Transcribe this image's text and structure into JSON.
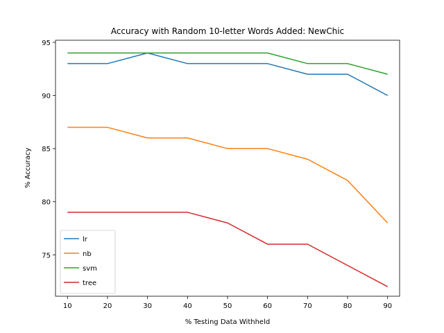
{
  "chart_data": {
    "type": "line",
    "title": "Accuracy with Random 10-letter Words Added: NewChic",
    "xlabel": "% Testing Data Withheld",
    "ylabel": "% Accuracy",
    "x": [
      10,
      20,
      30,
      40,
      50,
      60,
      70,
      80,
      90
    ],
    "xlim": [
      7,
      93
    ],
    "ylim": [
      71.1,
      95.2
    ],
    "xticks": [
      10,
      20,
      30,
      40,
      50,
      60,
      70,
      80,
      90
    ],
    "yticks": [
      75,
      80,
      85,
      90,
      95
    ],
    "grid": false,
    "legend_position": "lower-left",
    "series": [
      {
        "name": "lr",
        "color": "#1f77b4",
        "values": [
          93,
          93,
          94,
          93,
          93,
          93,
          92,
          92,
          90
        ]
      },
      {
        "name": "nb",
        "color": "#ff7f0e",
        "values": [
          87,
          87,
          86,
          86,
          85,
          85,
          84,
          82,
          78
        ]
      },
      {
        "name": "svm",
        "color": "#2ca02c",
        "values": [
          94,
          94,
          94,
          94,
          94,
          94,
          93,
          93,
          92
        ]
      },
      {
        "name": "tree",
        "color": "#d62728",
        "values": [
          79,
          79,
          79,
          79,
          78,
          76,
          76,
          74,
          72
        ]
      }
    ]
  }
}
